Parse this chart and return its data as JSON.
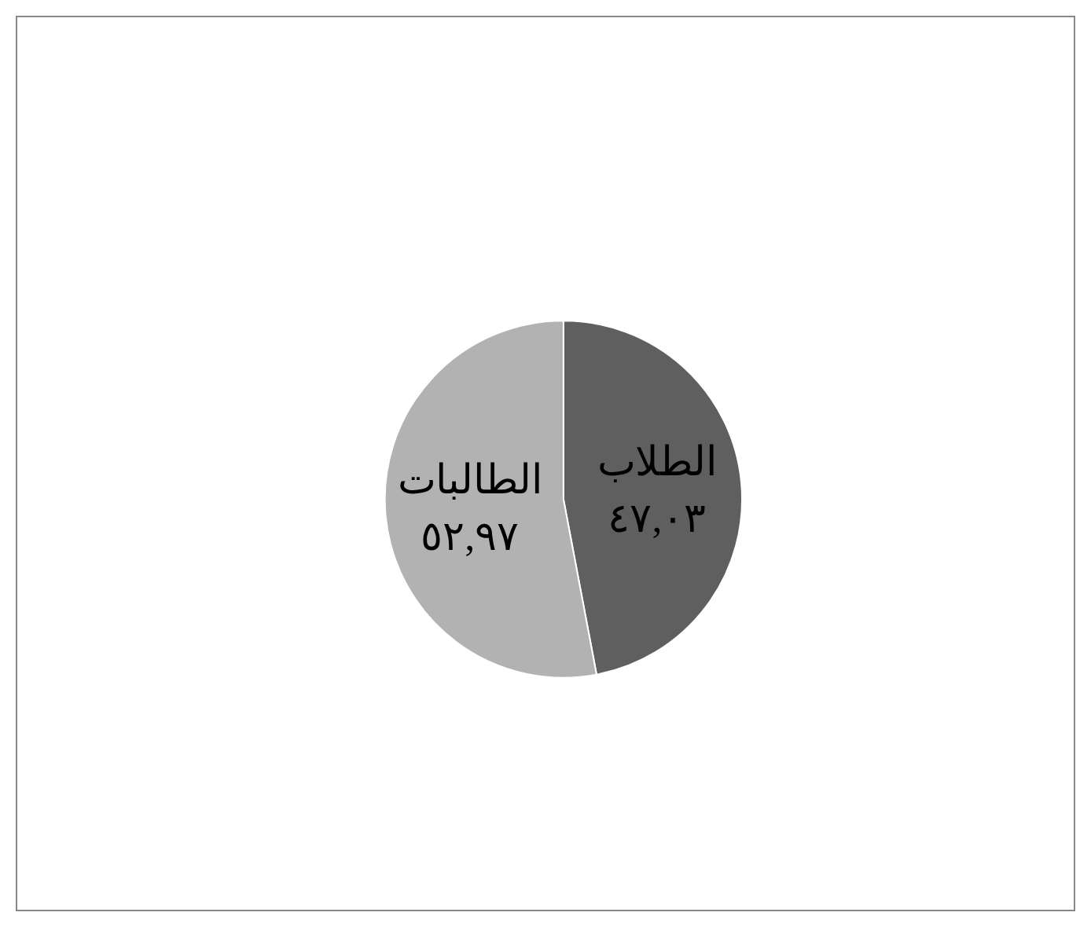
{
  "chart_data": {
    "type": "pie",
    "categories": [
      "الطلاب",
      "الطالبات"
    ],
    "values": [
      47.03,
      52.97
    ],
    "colors": [
      "#5f5f5f",
      "#b2b2b2"
    ],
    "value_labels": [
      "٤٧,٠٣",
      "٥٢,٩٧"
    ],
    "legend": false
  }
}
